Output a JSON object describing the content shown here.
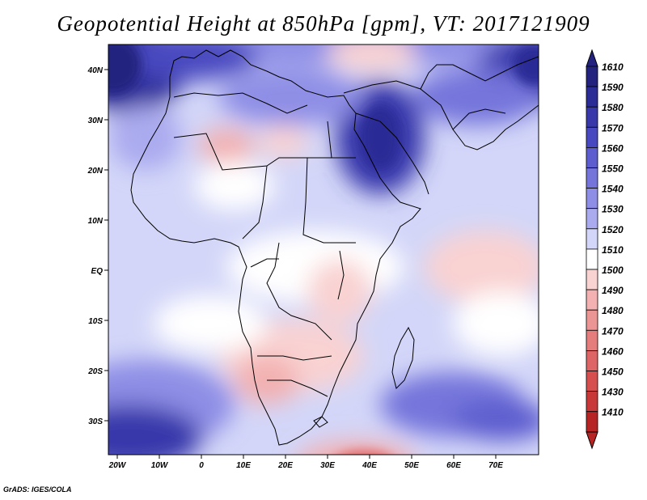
{
  "title": "Geopotential Height at 850hPa [gpm], VT: 2017121909",
  "credit": "GrADS: IGES/COLA",
  "map": {
    "variable": "Geopotential Height",
    "level": "850hPa",
    "units": "gpm",
    "valid_time": "2017121909",
    "lon_ticks": [
      "20W",
      "10W",
      "0",
      "10E",
      "20E",
      "30E",
      "40E",
      "50E",
      "60E",
      "70E"
    ],
    "lat_ticks": [
      "40N",
      "30N",
      "20N",
      "10N",
      "EQ",
      "10S",
      "20S",
      "30S"
    ]
  },
  "colorbar": {
    "levels": [
      {
        "label": "1610",
        "color": "#23237f"
      },
      {
        "label": "1590",
        "color": "#2c2c96"
      },
      {
        "label": "1580",
        "color": "#3838ab"
      },
      {
        "label": "1570",
        "color": "#4848c0"
      },
      {
        "label": "1560",
        "color": "#5d5dcf"
      },
      {
        "label": "1550",
        "color": "#7474db"
      },
      {
        "label": "1540",
        "color": "#8e8ee6"
      },
      {
        "label": "1530",
        "color": "#aaaaef"
      },
      {
        "label": "1520",
        "color": "#d3d6f8"
      },
      {
        "label": "1510",
        "color": "#ffffff"
      },
      {
        "label": "1500",
        "color": "#f9d2d2"
      },
      {
        "label": "1490",
        "color": "#f3b1b1"
      },
      {
        "label": "1480",
        "color": "#ec9595"
      },
      {
        "label": "1470",
        "color": "#e57d7d"
      },
      {
        "label": "1460",
        "color": "#de6565"
      },
      {
        "label": "1450",
        "color": "#d64e4e"
      },
      {
        "label": "1430",
        "color": "#c93838"
      },
      {
        "label": "1410",
        "color": "#b72424"
      }
    ]
  }
}
